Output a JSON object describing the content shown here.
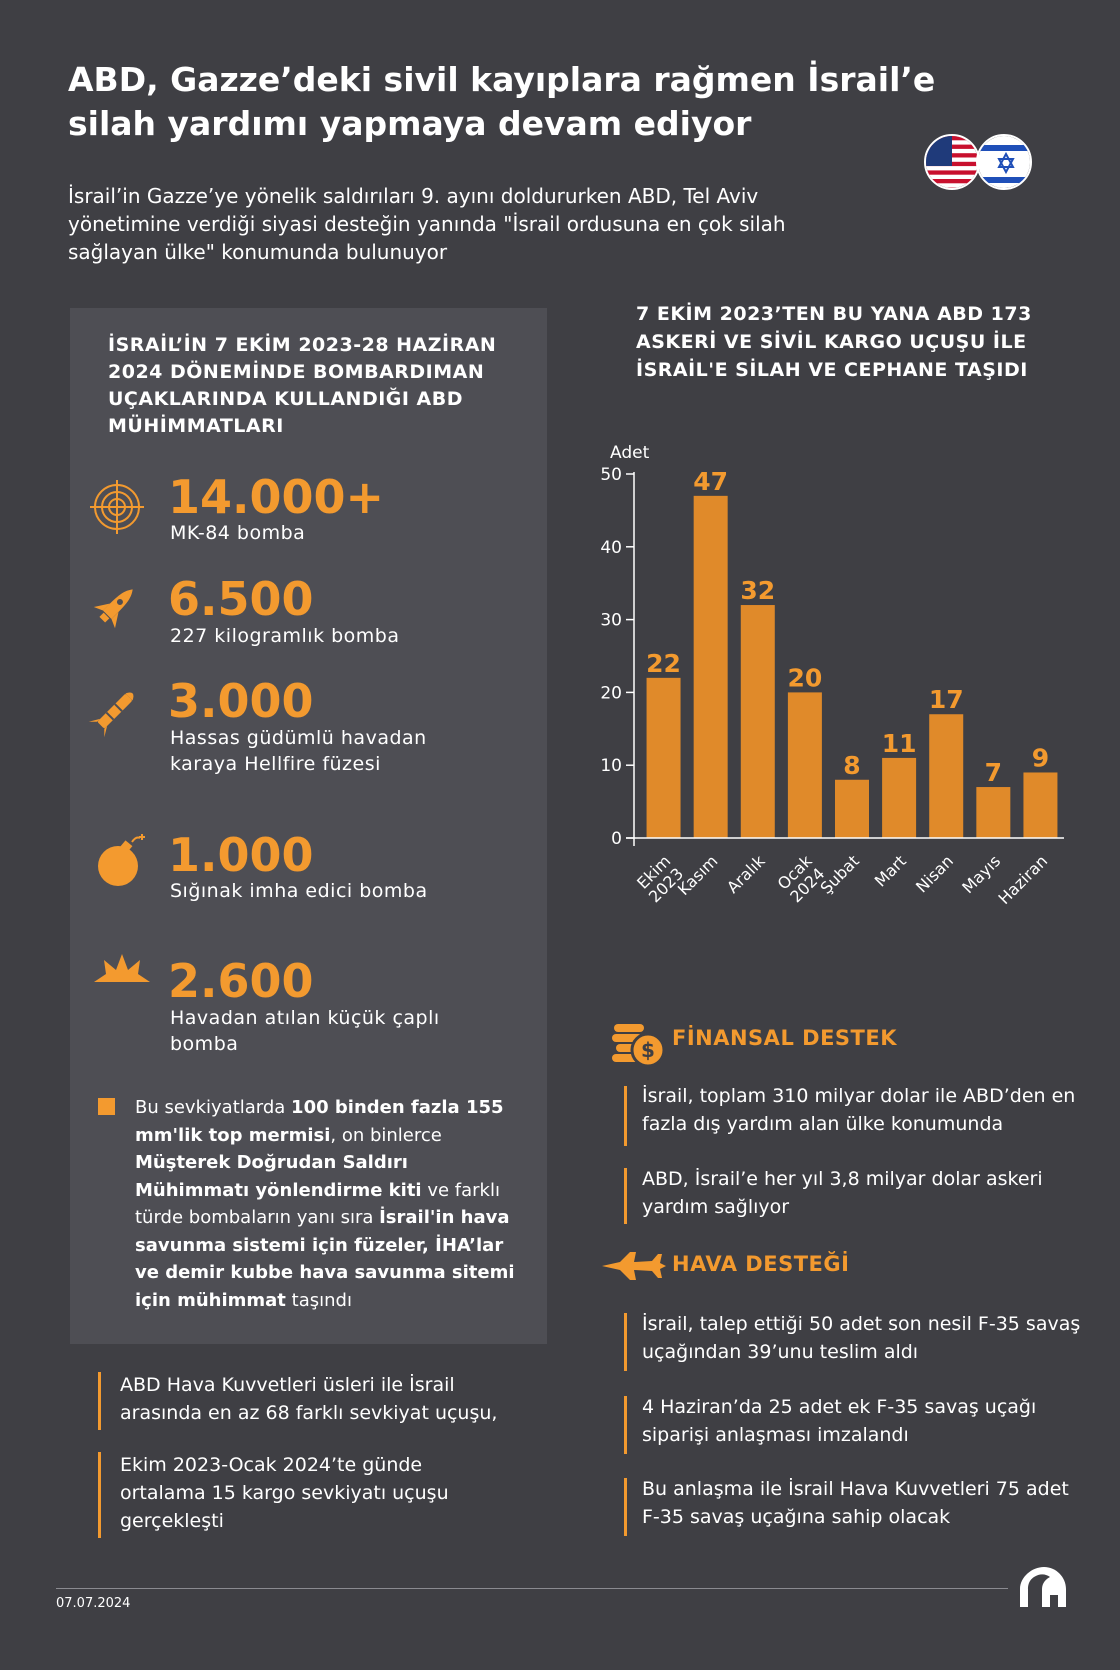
{
  "title": "ABD, Gazze’deki sivil kayıplara rağmen İsrail’e silah yardımı yapmaya devam ediyor",
  "subtitle": "İsrail’in Gazze’ye yönelik saldırıları 9. ayını doldururken ABD, Tel Aviv yönetimine verdiği siyasi desteğin yanında \"İsrail ordusuna en çok silah sağlayan ülke\" konumunda bulunuyor",
  "left": {
    "heading": "İSRAİL’İN 7 EKİM 2023-28 HAZİRAN 2024 DÖNEMİNDE BOMBARDIMAN UÇAKLARINDA KULLANDIĞI ABD MÜHİMMATLARI",
    "munitions": [
      {
        "icon": "target-icon",
        "value": "14.000+",
        "label": "MK-84 bomba"
      },
      {
        "icon": "missile-icon",
        "value": "6.500",
        "label": "227 kilogramlık bomba"
      },
      {
        "icon": "hellfire-missile-icon",
        "value": "3.000",
        "label": "Hassas güdümlü havadan karaya Hellfire füzesi"
      },
      {
        "icon": "bomb-icon",
        "value": "1.000",
        "label": "Sığınak imha edici bomba"
      },
      {
        "icon": "explosion-icon",
        "value": "2.600",
        "label": "Havadan atılan küçük çaplı bomba"
      }
    ],
    "note": {
      "p1": "Bu sevkiyatlarda ",
      "b1": "100 binden fazla 155 mm'lik top mermisi",
      "p2": ", on binlerce ",
      "b2": "Müşterek Doğrudan Saldırı Mühimmatı yönlendirme kiti",
      "p3": " ve farklı türde bombaların yanı sıra ",
      "b3": "İsrail'in hava savunma sistemi için füzeler, İHA’lar ve demir kubbe hava savunma sitemi için mühimmat",
      "p4": " taşındı"
    },
    "bullets": [
      "ABD Hava Kuvvetleri üsleri ile İsrail arasında en az 68 farklı sevkiyat uçuşu,",
      "Ekim 2023-Ocak 2024’te günde ortalama 15 kargo sevkiyatı uçuşu gerçekleşti"
    ]
  },
  "chart_data": {
    "type": "bar",
    "title": "7 EKİM 2023’TEN BU YANA ABD 173 ASKERİ VE SİVİL KARGO UÇUŞU İLE İSRAİL'E SİLAH VE CEPHANE TAŞIDI",
    "ylabel": "Adet",
    "ylim": [
      0,
      50
    ],
    "yticks": [
      0,
      10,
      20,
      30,
      40,
      50
    ],
    "categories": [
      [
        "Ekim",
        "2023"
      ],
      [
        "Kasım"
      ],
      [
        "Aralık"
      ],
      [
        "Ocak",
        "2024"
      ],
      [
        "Şubat"
      ],
      [
        "Mart"
      ],
      [
        "Nisan"
      ],
      [
        "Mayıs"
      ],
      [
        "Haziran"
      ]
    ],
    "values": [
      22,
      47,
      32,
      20,
      8,
      11,
      17,
      7,
      9
    ],
    "bar_color": "#e08a2a",
    "label_color": "#f39a2f",
    "grid": false
  },
  "finance": {
    "heading": "FİNANSAL DESTEK",
    "icon": "coins-dollar-icon",
    "items": [
      "İsrail, toplam 310 milyar dolar ile ABD’den en fazla dış yardım alan ülke konumunda",
      "ABD, İsrail’e her yıl 3,8 milyar dolar askeri yardım sağlıyor"
    ]
  },
  "air": {
    "heading": "HAVA DESTEĞİ",
    "icon": "fighter-jet-icon",
    "items": [
      "İsrail, talep ettiği 50 adet son nesil F-35 savaş uçağından 39’unu teslim aldı",
      "4 Haziran’da 25 adet ek F-35 savaş uçağı siparişi anlaşması imzalandı",
      "Bu anlaşma ile İsrail Hava Kuvvetleri 75 adet F-35 savaş uçağına sahip olacak"
    ]
  },
  "footer": {
    "date": "07.07.2024",
    "logo": "AA"
  },
  "colors": {
    "background": "#3f3f44",
    "panel": "#4e4e54",
    "accent": "#f39a2f"
  }
}
